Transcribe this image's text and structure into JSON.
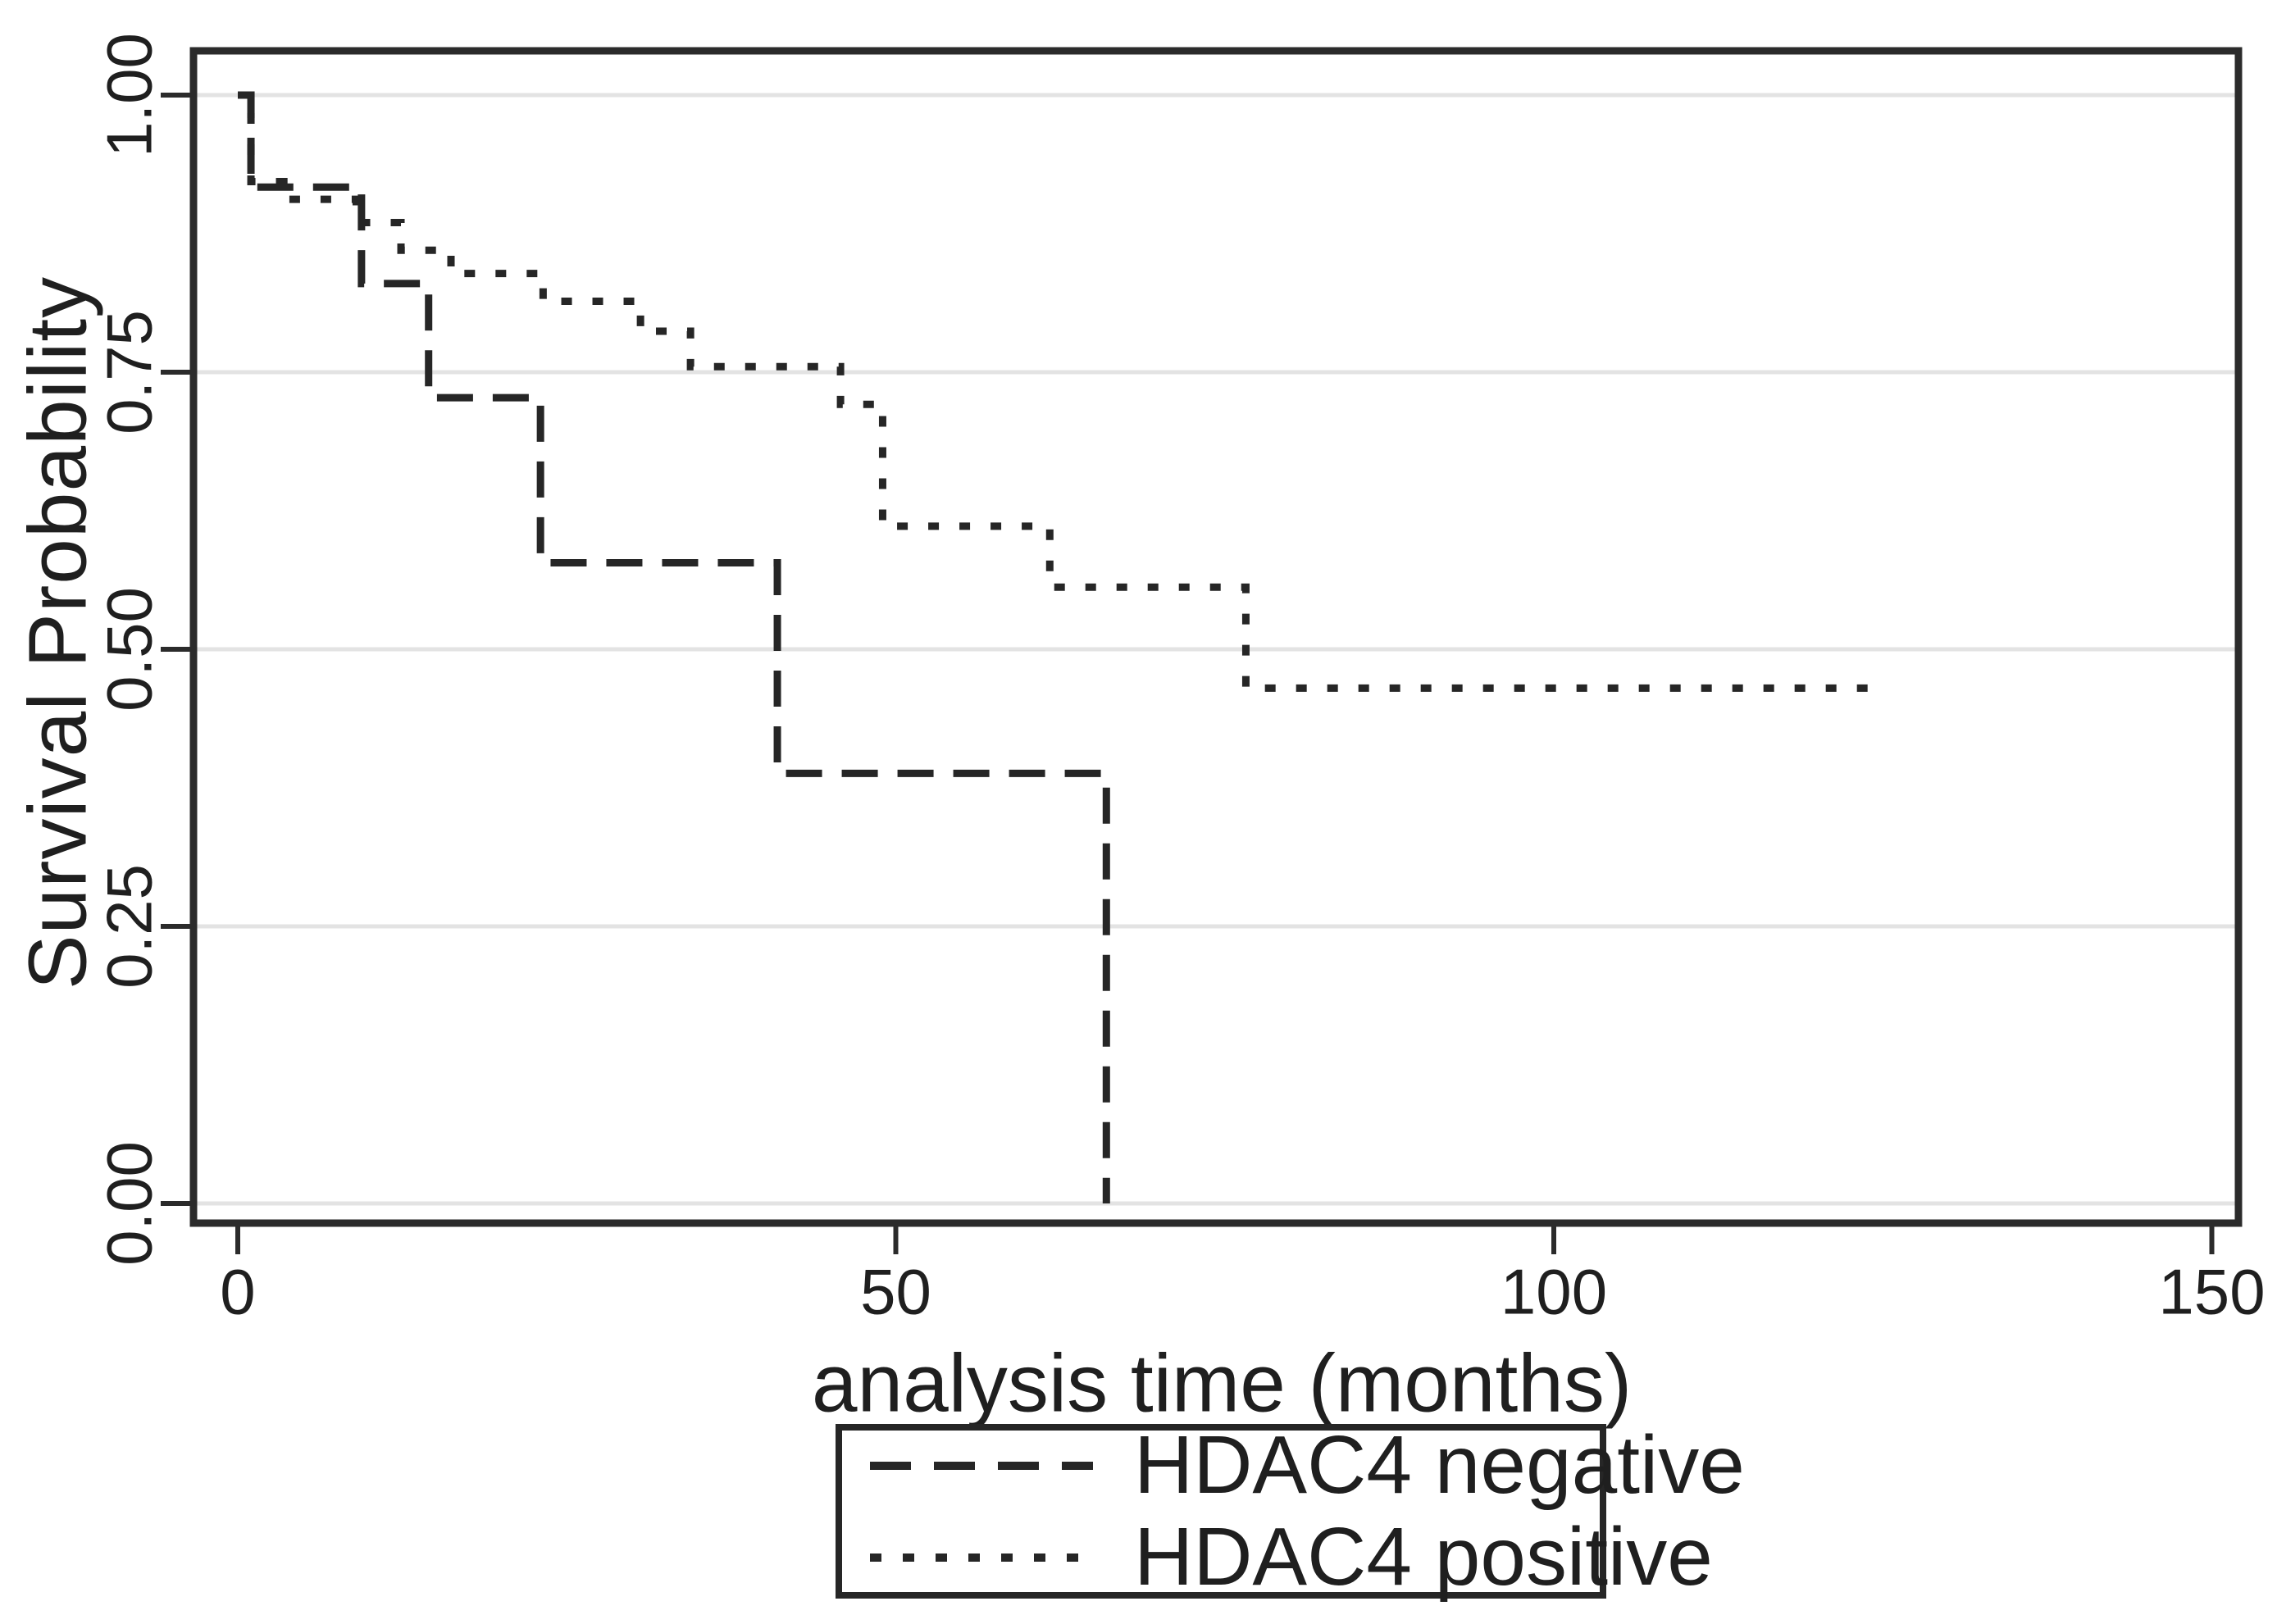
{
  "y_axis": {
    "title": "Survival Probability",
    "ticks": [
      {
        "label": "1.00",
        "value": 1.0
      },
      {
        "label": "0.75",
        "value": 0.75
      },
      {
        "label": "0.50",
        "value": 0.5
      },
      {
        "label": "0.25",
        "value": 0.25
      },
      {
        "label": "0.00",
        "value": 0.0
      }
    ]
  },
  "x_axis": {
    "title": "analysis time (months)",
    "ticks": [
      {
        "label": "0",
        "value": 0
      },
      {
        "label": "50",
        "value": 50
      },
      {
        "label": "100",
        "value": 100
      },
      {
        "label": "150",
        "value": 150
      }
    ]
  },
  "colors": {
    "curve": "#262626",
    "frame": "#2b2b2b",
    "grid": "#e3e3e3",
    "text": "#1f1f1f",
    "background": "#ffffff"
  },
  "chart_data": {
    "type": "line",
    "subtype": "kaplan-meier-step",
    "title": "",
    "xlabel": "analysis time (months)",
    "ylabel": "Survival Probability",
    "xlim": [
      0,
      150
    ],
    "ylim": [
      0.0,
      1.0
    ],
    "grid": true,
    "legend_position": "bottom-center",
    "series": [
      {
        "name": "HDAC4 negative",
        "style": "dashed",
        "color": "#262626",
        "points": [
          [
            0,
            1.0
          ],
          [
            1,
            0.917
          ],
          [
            9.4,
            0.83
          ],
          [
            14.5,
            0.727
          ],
          [
            23,
            0.578
          ],
          [
            41,
            0.388
          ],
          [
            66,
            0.0
          ]
        ],
        "end_time": 66
      },
      {
        "name": "HDAC4 positive",
        "style": "dotted",
        "color": "#262626",
        "points": [
          [
            0,
            1.0
          ],
          [
            1,
            0.922
          ],
          [
            3.5,
            0.906
          ],
          [
            9,
            0.885
          ],
          [
            12.4,
            0.86
          ],
          [
            16.2,
            0.839
          ],
          [
            23.2,
            0.814
          ],
          [
            30.6,
            0.787
          ],
          [
            34.4,
            0.755
          ],
          [
            45.8,
            0.721
          ],
          [
            49,
            0.611
          ],
          [
            61.7,
            0.556
          ],
          [
            76.6,
            0.465
          ]
        ],
        "end_time": 124.4
      }
    ]
  }
}
